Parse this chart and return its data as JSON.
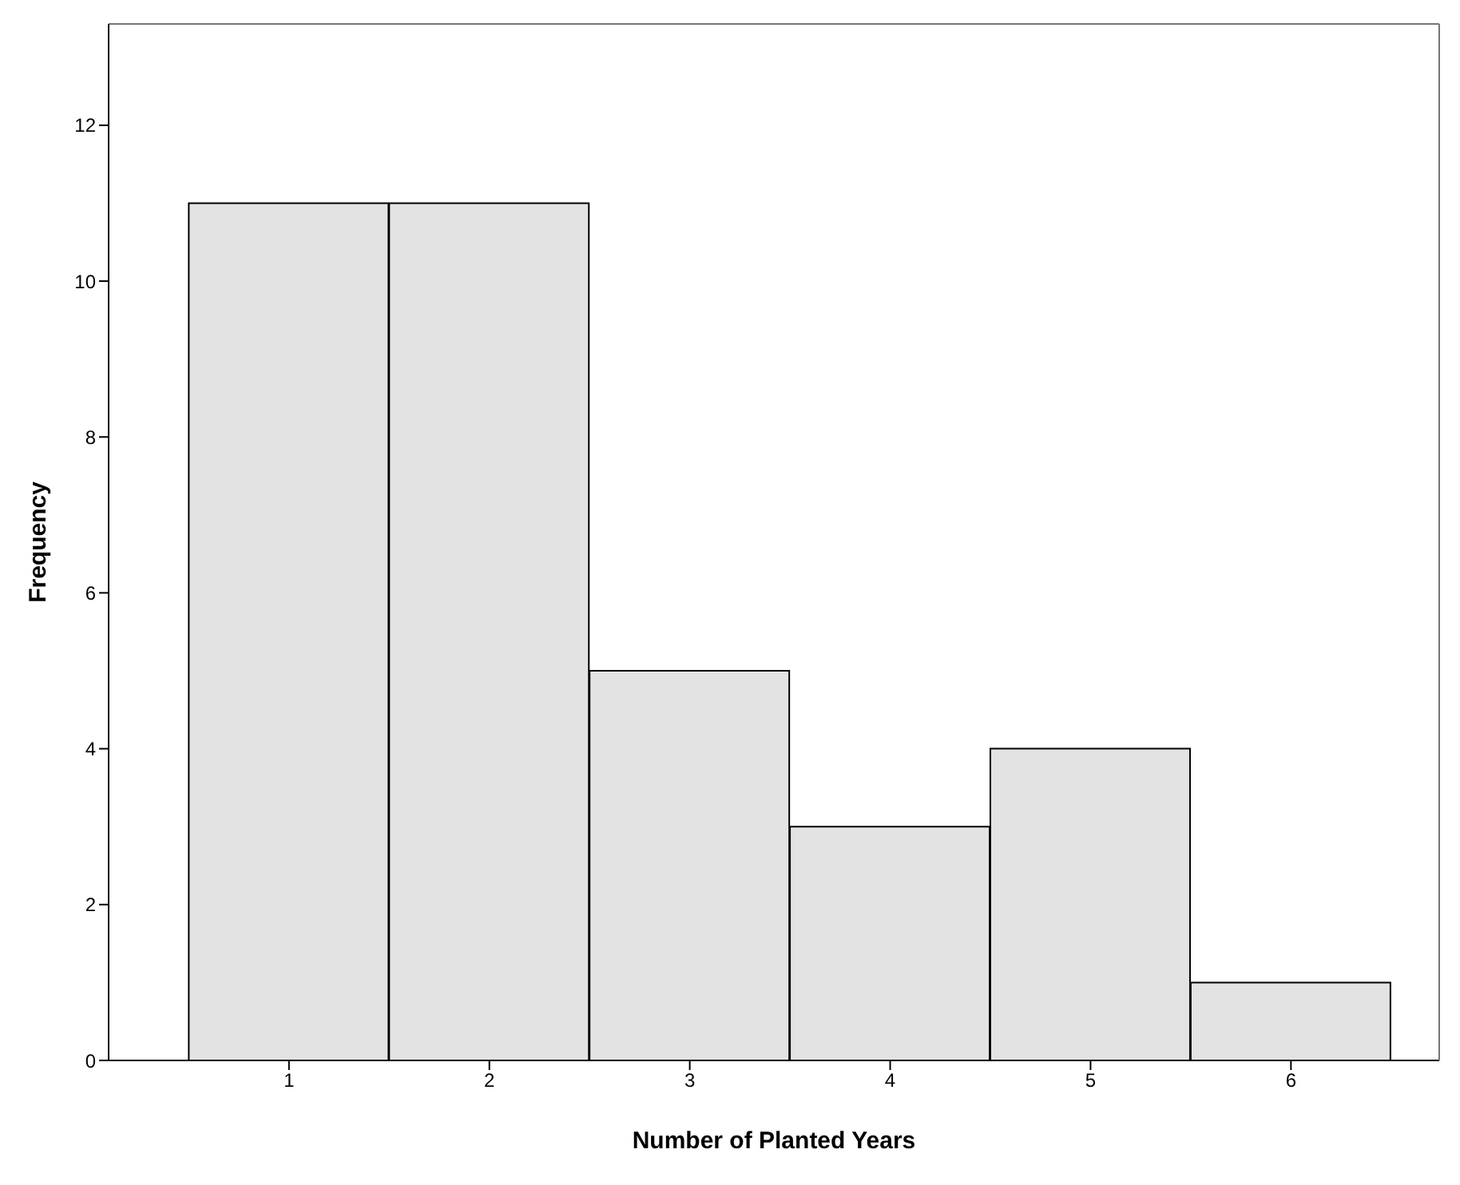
{
  "chart_data": {
    "type": "histogram",
    "xlabel": "Number of Planted Years",
    "ylabel": "Frequency",
    "bins": [
      0.5,
      1.5,
      2.5,
      3.5,
      4.5,
      5.5,
      6.5
    ],
    "values": [
      11,
      11,
      5,
      3,
      4,
      1
    ],
    "color": "#e3e3e3",
    "xlim": [
      0.1,
      6.74
    ],
    "xticks": [
      1,
      2,
      3,
      4,
      5,
      6
    ],
    "ylim": [
      0,
      13.3
    ],
    "yticks": [
      0,
      2,
      4,
      6,
      8,
      10,
      12
    ],
    "grid": false
  }
}
